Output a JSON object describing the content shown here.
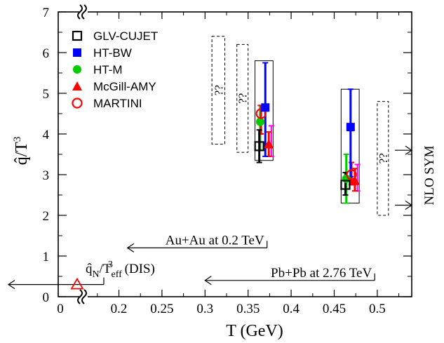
{
  "chart_data": {
    "type": "scatter",
    "title": "",
    "xlabel": "T (GeV)",
    "ylabel": "q̂/T³",
    "xlim": [
      0.07,
      0.54
    ],
    "ylim": [
      0,
      7
    ],
    "x_ticks": [
      "0",
      "0.2",
      "0.25",
      "0.3",
      "0.35",
      "0.4",
      "0.45",
      "0.5"
    ],
    "y_ticks": [
      "0",
      "1",
      "2",
      "3",
      "4",
      "5",
      "6",
      "7"
    ],
    "legend_position": "top-left",
    "series": [
      {
        "name": "GLV-CUJET",
        "marker": "open-square",
        "color": "#000000",
        "points": [
          {
            "x": 0.363,
            "y": 3.7,
            "ylow": 3.3,
            "yhigh": 4.1
          },
          {
            "x": 0.463,
            "y": 2.75,
            "ylow": 2.5,
            "yhigh": 3.05
          }
        ]
      },
      {
        "name": "HT-BW",
        "marker": "filled-square",
        "color": "#0000ff",
        "points": [
          {
            "x": 0.37,
            "y": 4.65,
            "ylow": 3.45,
            "yhigh": 5.75
          },
          {
            "x": 0.469,
            "y": 4.17,
            "ylow": 2.95,
            "yhigh": 5.1
          }
        ]
      },
      {
        "name": "HT-M",
        "marker": "filled-circle",
        "color": "#00cc00",
        "points": [
          {
            "x": 0.364,
            "y": 4.3,
            "ylow": 3.6,
            "yhigh": 4.7
          },
          {
            "x": 0.464,
            "y": 2.9,
            "ylow": 2.3,
            "yhigh": 3.5
          }
        ]
      },
      {
        "name": "McGill-AMY",
        "marker": "filled-triangle",
        "color": "#ff0000",
        "points": [
          {
            "x": 0.374,
            "y": 3.75,
            "ylow": 3.45,
            "yhigh": 4.05
          },
          {
            "x": 0.474,
            "y": 2.85,
            "ylow": 2.6,
            "yhigh": 3.15
          }
        ]
      },
      {
        "name": "MARTINI",
        "marker": "open-circle",
        "color": "#ff0000",
        "points": [
          {
            "x": 0.365,
            "y": 4.5,
            "ylow": 4.0,
            "yhigh": 4.7
          },
          {
            "x": 0.47,
            "y": 3.0,
            "ylow": 2.75,
            "yhigh": 3.3
          }
        ]
      }
    ],
    "extra_errorbars": [
      {
        "x": 0.377,
        "ylow": 3.45,
        "yhigh": 4.2,
        "color": "#ff00ff"
      },
      {
        "x": 0.477,
        "ylow": 2.6,
        "yhigh": 3.25,
        "color": "#ff00ff"
      }
    ],
    "solid_boxes": [
      {
        "x0": 0.358,
        "x1": 0.379,
        "y0": 3.35,
        "y1": 5.8
      },
      {
        "x0": 0.458,
        "x1": 0.479,
        "y0": 2.3,
        "y1": 5.1
      }
    ],
    "dashed_boxes": [
      {
        "x0": 0.308,
        "x1": 0.323,
        "y0": 3.75,
        "y1": 6.4,
        "label": "??"
      },
      {
        "x0": 0.337,
        "x1": 0.35,
        "y0": 3.55,
        "y1": 6.2,
        "label": "??"
      },
      {
        "x0": 0.5,
        "x1": 0.513,
        "y0": 2.0,
        "y1": 4.8,
        "label": "??"
      }
    ],
    "dis_point": {
      "x": 0.09,
      "y": 0.3,
      "marker": "open-triangle",
      "color": "#ff0000"
    },
    "annotations": [
      {
        "id": "auau",
        "text": "Au+Au at 0.2 TeV",
        "x0": 0.21,
        "x1": 0.372,
        "y": 1.2
      },
      {
        "id": "pbpb",
        "text": "Pb+Pb at 2.76 TeV",
        "x0": 0.3,
        "x1": 0.497,
        "y": 0.4
      },
      {
        "id": "dis",
        "text_main": "q̂",
        "text_sub": "N",
        "text_mid": "/T",
        "text_sub2": "eff",
        "text_sup": "3",
        "text_end": " (DIS)",
        "y": 0.3
      }
    ],
    "nlo_sym": {
      "label": "NLO SYM",
      "y_values": [
        3.6,
        2.25
      ]
    }
  }
}
